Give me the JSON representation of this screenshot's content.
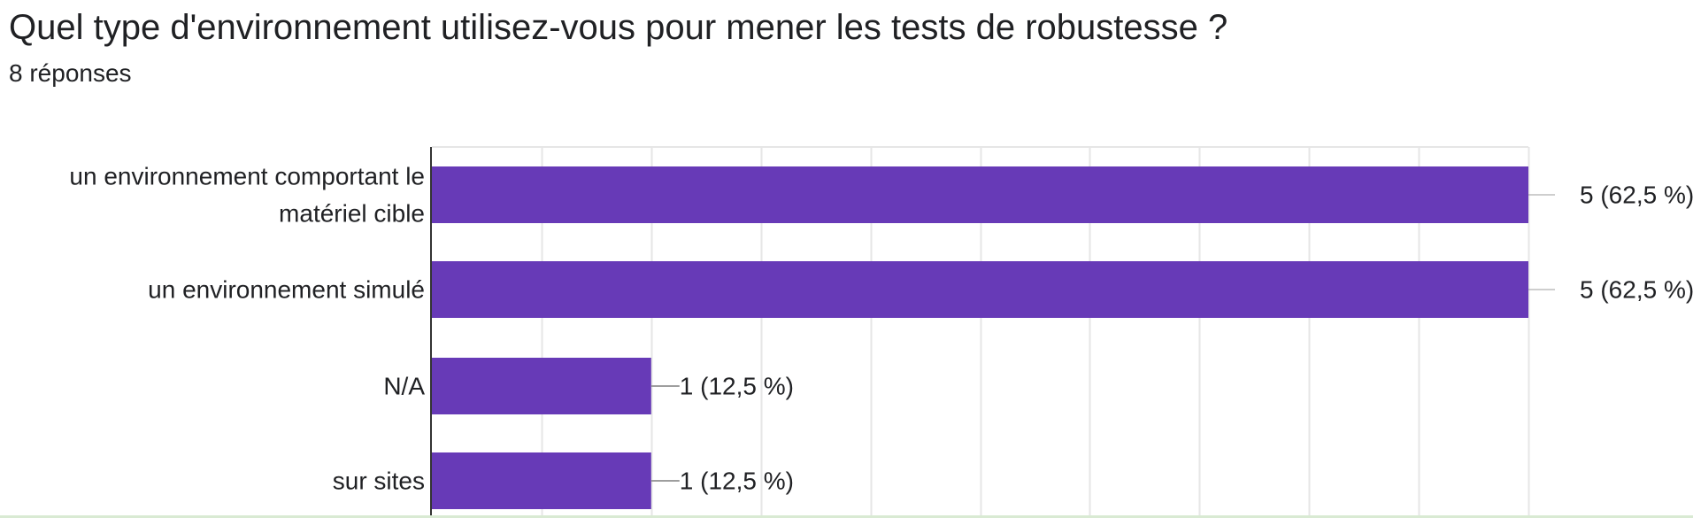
{
  "question": {
    "title": "Quel type d'environnement utilisez-vous pour mener les tests de robustesse ?",
    "response_count": "8 réponses"
  },
  "colors": {
    "bar": "#673ab7",
    "grid": "#e6e6e6",
    "axis": "#333333",
    "leader": "#9e9e9e",
    "text": "#202124"
  },
  "chart_data": {
    "type": "bar",
    "orientation": "horizontal",
    "categories": [
      [
        "un environnement comportant le",
        "matériel cible"
      ],
      [
        "un environnement simulé"
      ],
      [
        "N/A"
      ],
      [
        "sur sites"
      ]
    ],
    "values": [
      5,
      5,
      1,
      1
    ],
    "data_labels": [
      "5 (62,5 %)",
      "5 (62,5 %)",
      "1 (12,5 %)",
      "1 (12,5 %)"
    ],
    "xlim": [
      0,
      5
    ],
    "grid_step": 0.5,
    "grid": true
  }
}
